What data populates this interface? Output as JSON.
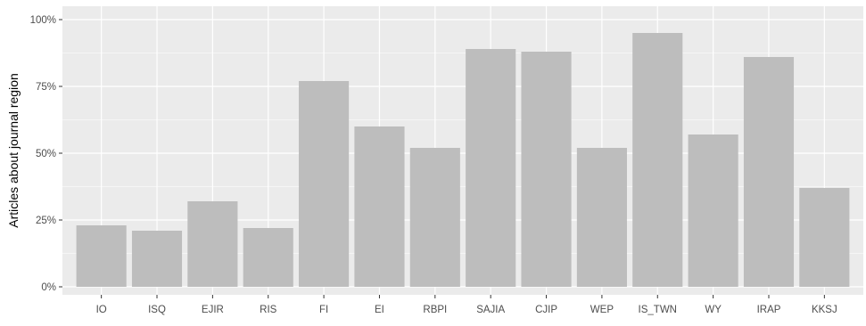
{
  "chart_data": {
    "type": "bar",
    "categories": [
      "IO",
      "ISQ",
      "EJIR",
      "RIS",
      "FI",
      "EI",
      "RBPI",
      "SAJIA",
      "CJIP",
      "WEP",
      "IS_TWN",
      "WY",
      "IRAP",
      "KKSJ"
    ],
    "values": [
      0.23,
      0.21,
      0.32,
      0.22,
      0.77,
      0.6,
      0.52,
      0.89,
      0.88,
      0.52,
      0.95,
      0.57,
      0.86,
      0.37
    ],
    "title": "",
    "xlabel": "",
    "ylabel": "Articles about journal region",
    "ylim": [
      0,
      1.0
    ],
    "y_ticks": [
      0,
      0.25,
      0.5,
      0.75,
      1.0
    ],
    "y_tick_labels": [
      "0%",
      "25%",
      "50%",
      "75%",
      "100%"
    ],
    "grid": true,
    "legend": "none",
    "colors": {
      "bar": "#bdbdbd",
      "panel_background": "#ebebeb",
      "grid": "#ffffff",
      "text": "#4d4d4d",
      "axis_title": "#000000"
    }
  }
}
